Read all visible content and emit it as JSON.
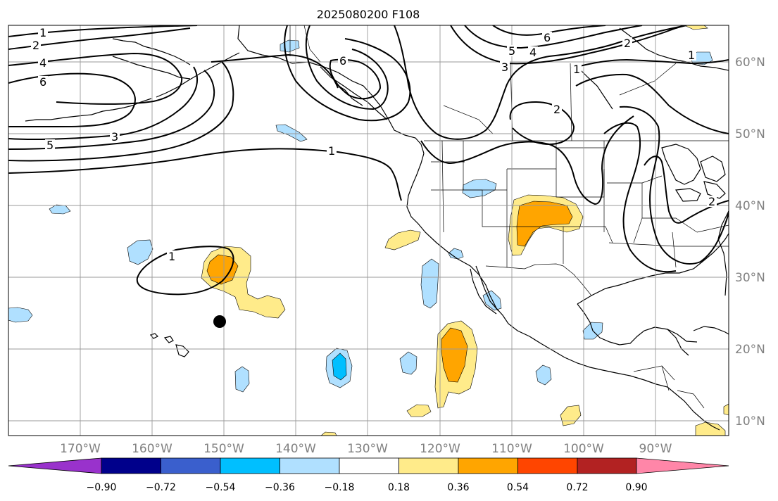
{
  "title": "2025080200 F108",
  "map": {
    "lon_labels": [
      "170°W",
      "160°W",
      "150°W",
      "140°W",
      "130°W",
      "120°W",
      "110°W",
      "100°W",
      "90°W"
    ],
    "lat_labels": [
      "60°N",
      "50°N",
      "40°N",
      "30°N",
      "20°N",
      "10°N"
    ],
    "contour_labels": [
      "1",
      "2",
      "4",
      "6",
      "5",
      "3",
      "6",
      "3",
      "5",
      "4",
      "6",
      "2",
      "1",
      "1",
      "2",
      "1",
      "1",
      "2"
    ]
  },
  "colorbar": {
    "ticks": [
      "−0.90",
      "−0.72",
      "−0.54",
      "−0.36",
      "−0.18",
      "0.18",
      "0.36",
      "0.54",
      "0.72",
      "0.90"
    ],
    "colors": [
      "#9932cc",
      "#00008b",
      "#3a5fcd",
      "#00bfff",
      "#b0e0ff",
      "#ffffff",
      "#ffeb8a",
      "#ffa500",
      "#ff4500",
      "#b22222",
      "#ff86a8"
    ]
  }
}
